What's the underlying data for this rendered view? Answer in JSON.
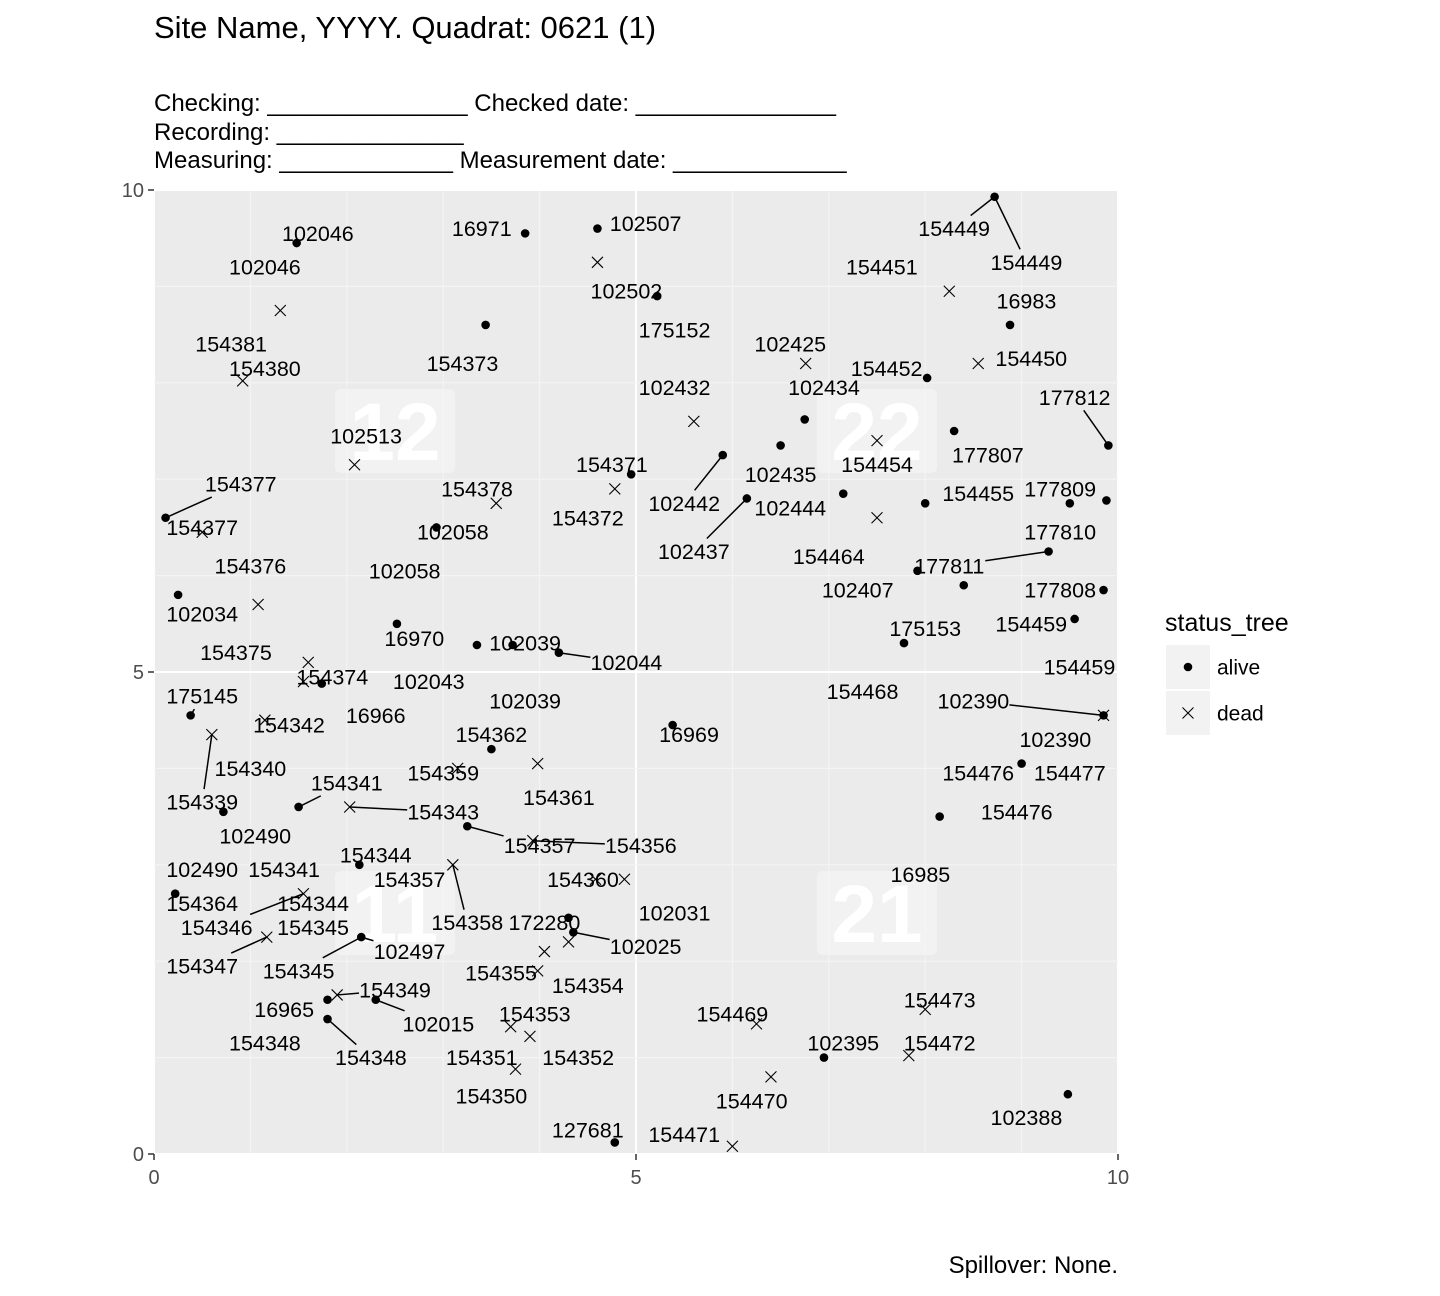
{
  "title": "Site Name, YYYY. Quadrat: 0621 (1)",
  "subtitle_lines": [
    "Checking: _______________ Checked date: _______________",
    "Recording: ______________",
    "Measuring: _____________ Measurement date: _____________"
  ],
  "caption": "Spillover: None.",
  "colors": {
    "panel": "#ebebeb",
    "grid_major": "#ffffff",
    "grid_minor": "#f4f4f4",
    "point": "#000000",
    "quadrat_box": "#f4f4f4"
  },
  "chart_data": {
    "type": "scatter",
    "xlim": [
      0,
      10
    ],
    "ylim": [
      0,
      10
    ],
    "x_ticks": [
      "0",
      "5",
      "10"
    ],
    "y_ticks": [
      "0",
      "5",
      "10"
    ],
    "grid": true,
    "legend": {
      "title": "status_tree",
      "position": "right",
      "entries": [
        {
          "label": "alive",
          "shape": "circle"
        },
        {
          "label": "dead",
          "shape": "cross"
        }
      ]
    },
    "quadrat_labels": [
      {
        "text": "12",
        "x": 2.5,
        "y": 7.5
      },
      {
        "text": "22",
        "x": 7.5,
        "y": 7.5
      },
      {
        "text": "11",
        "x": 2.5,
        "y": 2.5
      },
      {
        "text": "21",
        "x": 7.5,
        "y": 2.5
      }
    ],
    "points": [
      {
        "x": 8.72,
        "y": 9.93,
        "s": "alive"
      },
      {
        "x": 3.85,
        "y": 9.55,
        "s": "alive"
      },
      {
        "x": 4.6,
        "y": 9.6,
        "s": "alive"
      },
      {
        "x": 4.6,
        "y": 9.25,
        "s": "dead"
      },
      {
        "x": 1.48,
        "y": 9.45,
        "s": "alive"
      },
      {
        "x": 8.25,
        "y": 8.95,
        "s": "dead"
      },
      {
        "x": 5.22,
        "y": 8.9,
        "s": "alive"
      },
      {
        "x": 8.88,
        "y": 8.6,
        "s": "alive"
      },
      {
        "x": 1.31,
        "y": 8.75,
        "s": "dead"
      },
      {
        "x": 3.44,
        "y": 8.6,
        "s": "alive"
      },
      {
        "x": 6.76,
        "y": 8.2,
        "s": "dead"
      },
      {
        "x": 8.55,
        "y": 8.2,
        "s": "dead"
      },
      {
        "x": 8.02,
        "y": 8.05,
        "s": "alive"
      },
      {
        "x": 0.92,
        "y": 8.02,
        "s": "dead"
      },
      {
        "x": 5.6,
        "y": 7.6,
        "s": "dead"
      },
      {
        "x": 6.75,
        "y": 7.62,
        "s": "alive"
      },
      {
        "x": 8.3,
        "y": 7.5,
        "s": "alive"
      },
      {
        "x": 7.5,
        "y": 7.4,
        "s": "dead"
      },
      {
        "x": 6.5,
        "y": 7.35,
        "s": "alive"
      },
      {
        "x": 9.9,
        "y": 7.35,
        "s": "alive"
      },
      {
        "x": 5.9,
        "y": 7.25,
        "s": "alive"
      },
      {
        "x": 2.08,
        "y": 7.15,
        "s": "dead"
      },
      {
        "x": 4.95,
        "y": 7.05,
        "s": "alive"
      },
      {
        "x": 4.78,
        "y": 6.9,
        "s": "dead"
      },
      {
        "x": 7.15,
        "y": 6.85,
        "s": "alive"
      },
      {
        "x": 3.55,
        "y": 6.75,
        "s": "dead"
      },
      {
        "x": 6.15,
        "y": 6.8,
        "s": "alive"
      },
      {
        "x": 8.0,
        "y": 6.75,
        "s": "alive"
      },
      {
        "x": 9.5,
        "y": 6.75,
        "s": "alive"
      },
      {
        "x": 9.88,
        "y": 6.78,
        "s": "alive"
      },
      {
        "x": 0.12,
        "y": 6.6,
        "s": "alive"
      },
      {
        "x": 7.5,
        "y": 6.6,
        "s": "dead"
      },
      {
        "x": 2.93,
        "y": 6.5,
        "s": "alive"
      },
      {
        "x": 0.5,
        "y": 6.45,
        "s": "dead"
      },
      {
        "x": 9.28,
        "y": 6.25,
        "s": "alive"
      },
      {
        "x": 7.92,
        "y": 6.05,
        "s": "alive"
      },
      {
        "x": 8.4,
        "y": 5.9,
        "s": "alive"
      },
      {
        "x": 9.85,
        "y": 5.85,
        "s": "alive"
      },
      {
        "x": 0.25,
        "y": 5.8,
        "s": "alive"
      },
      {
        "x": 1.08,
        "y": 5.7,
        "s": "dead"
      },
      {
        "x": 9.55,
        "y": 5.55,
        "s": "alive"
      },
      {
        "x": 2.52,
        "y": 5.5,
        "s": "alive"
      },
      {
        "x": 7.78,
        "y": 5.3,
        "s": "alive"
      },
      {
        "x": 3.35,
        "y": 5.28,
        "s": "alive"
      },
      {
        "x": 3.72,
        "y": 5.28,
        "s": "alive"
      },
      {
        "x": 4.2,
        "y": 5.2,
        "s": "alive"
      },
      {
        "x": 1.6,
        "y": 5.1,
        "s": "dead"
      },
      {
        "x": 1.55,
        "y": 4.9,
        "s": "dead"
      },
      {
        "x": 1.74,
        "y": 4.88,
        "s": "alive"
      },
      {
        "x": 0.38,
        "y": 4.55,
        "s": "alive"
      },
      {
        "x": 1.15,
        "y": 4.5,
        "s": "dead"
      },
      {
        "x": 9.85,
        "y": 4.55,
        "s": "dead"
      },
      {
        "x": 9.85,
        "y": 4.55,
        "s": "alive"
      },
      {
        "x": 0.6,
        "y": 4.35,
        "s": "dead"
      },
      {
        "x": 5.38,
        "y": 4.45,
        "s": "alive"
      },
      {
        "x": 3.5,
        "y": 4.2,
        "s": "alive"
      },
      {
        "x": 3.98,
        "y": 4.05,
        "s": "dead"
      },
      {
        "x": 3.15,
        "y": 4.0,
        "s": "dead"
      },
      {
        "x": 9.0,
        "y": 4.05,
        "s": "alive"
      },
      {
        "x": 2.03,
        "y": 3.6,
        "s": "dead"
      },
      {
        "x": 1.5,
        "y": 3.6,
        "s": "alive"
      },
      {
        "x": 0.72,
        "y": 3.55,
        "s": "alive"
      },
      {
        "x": 8.15,
        "y": 3.5,
        "s": "alive"
      },
      {
        "x": 3.25,
        "y": 3.4,
        "s": "alive"
      },
      {
        "x": 3.93,
        "y": 3.25,
        "s": "dead"
      },
      {
        "x": 3.1,
        "y": 3.0,
        "s": "dead"
      },
      {
        "x": 2.13,
        "y": 3.0,
        "s": "alive"
      },
      {
        "x": 4.58,
        "y": 2.85,
        "s": "dead"
      },
      {
        "x": 4.88,
        "y": 2.85,
        "s": "dead"
      },
      {
        "x": 0.22,
        "y": 2.7,
        "s": "alive"
      },
      {
        "x": 1.55,
        "y": 2.7,
        "s": "dead"
      },
      {
        "x": 4.3,
        "y": 2.45,
        "s": "alive"
      },
      {
        "x": 4.35,
        "y": 2.3,
        "s": "alive"
      },
      {
        "x": 4.3,
        "y": 2.2,
        "s": "dead"
      },
      {
        "x": 2.15,
        "y": 2.25,
        "s": "alive"
      },
      {
        "x": 1.17,
        "y": 2.25,
        "s": "dead"
      },
      {
        "x": 4.05,
        "y": 2.1,
        "s": "dead"
      },
      {
        "x": 3.98,
        "y": 1.9,
        "s": "dead"
      },
      {
        "x": 1.9,
        "y": 1.65,
        "s": "dead"
      },
      {
        "x": 1.8,
        "y": 1.6,
        "s": "alive"
      },
      {
        "x": 2.3,
        "y": 1.6,
        "s": "alive"
      },
      {
        "x": 8.0,
        "y": 1.5,
        "s": "dead"
      },
      {
        "x": 6.25,
        "y": 1.35,
        "s": "dead"
      },
      {
        "x": 1.8,
        "y": 1.4,
        "s": "alive"
      },
      {
        "x": 3.7,
        "y": 1.32,
        "s": "dead"
      },
      {
        "x": 3.9,
        "y": 1.22,
        "s": "dead"
      },
      {
        "x": 6.95,
        "y": 1.0,
        "s": "alive"
      },
      {
        "x": 7.83,
        "y": 1.02,
        "s": "dead"
      },
      {
        "x": 3.75,
        "y": 0.88,
        "s": "dead"
      },
      {
        "x": 6.4,
        "y": 0.8,
        "s": "dead"
      },
      {
        "x": 9.48,
        "y": 0.62,
        "s": "alive"
      },
      {
        "x": 4.78,
        "y": 0.12,
        "s": "alive"
      },
      {
        "x": 6.0,
        "y": 0.08,
        "s": "dead"
      }
    ],
    "labels": [
      {
        "t": "154449",
        "x": 8.3,
        "y": 9.6,
        "lx": 8.72,
        "ly": 9.93
      },
      {
        "t": "154449",
        "x": 9.05,
        "y": 9.25,
        "lx": 8.72,
        "ly": 9.93
      },
      {
        "t": "16971",
        "x": 3.4,
        "y": 9.6
      },
      {
        "t": "102507",
        "x": 5.1,
        "y": 9.65
      },
      {
        "t": "102046",
        "x": 1.7,
        "y": 9.55
      },
      {
        "t": "102046",
        "x": 1.15,
        "y": 9.2
      },
      {
        "t": "102502",
        "x": 4.9,
        "y": 8.95
      },
      {
        "t": "154451",
        "x": 7.55,
        "y": 9.2
      },
      {
        "t": "175152",
        "x": 5.4,
        "y": 8.55
      },
      {
        "t": "16983",
        "x": 9.05,
        "y": 8.85
      },
      {
        "t": "154381",
        "x": 0.8,
        "y": 8.4
      },
      {
        "t": "154373",
        "x": 3.2,
        "y": 8.2
      },
      {
        "t": "102425",
        "x": 6.6,
        "y": 8.4
      },
      {
        "t": "154452",
        "x": 7.6,
        "y": 8.15
      },
      {
        "t": "154450",
        "x": 9.1,
        "y": 8.25
      },
      {
        "t": "154380",
        "x": 1.15,
        "y": 8.15
      },
      {
        "t": "102432",
        "x": 5.4,
        "y": 7.95
      },
      {
        "t": "102434",
        "x": 6.95,
        "y": 7.95
      },
      {
        "t": "177812",
        "x": 9.55,
        "y": 7.85,
        "lx": 9.9,
        "ly": 7.35
      },
      {
        "t": "102513",
        "x": 2.2,
        "y": 7.45
      },
      {
        "t": "177807",
        "x": 8.65,
        "y": 7.25
      },
      {
        "t": "154371",
        "x": 4.75,
        "y": 7.15
      },
      {
        "t": "102435",
        "x": 6.5,
        "y": 7.05
      },
      {
        "t": "154454",
        "x": 7.5,
        "y": 7.15
      },
      {
        "t": "154377",
        "x": 0.9,
        "y": 6.95,
        "lx": 0.12,
        "ly": 6.6
      },
      {
        "t": "154378",
        "x": 3.35,
        "y": 6.9
      },
      {
        "t": "102442",
        "x": 5.5,
        "y": 6.75,
        "lx": 5.9,
        "ly": 7.25
      },
      {
        "t": "154455",
        "x": 8.55,
        "y": 6.85
      },
      {
        "t": "177809",
        "x": 9.4,
        "y": 6.9
      },
      {
        "t": "154372",
        "x": 4.5,
        "y": 6.6
      },
      {
        "t": "102444",
        "x": 6.6,
        "y": 6.7
      },
      {
        "t": "154377",
        "x": 0.5,
        "y": 6.5
      },
      {
        "t": "102058",
        "x": 3.1,
        "y": 6.45
      },
      {
        "t": "177810",
        "x": 9.4,
        "y": 6.45
      },
      {
        "t": "102437",
        "x": 5.6,
        "y": 6.25,
        "lx": 6.15,
        "ly": 6.8
      },
      {
        "t": "154376",
        "x": 1.0,
        "y": 6.1
      },
      {
        "t": "154464",
        "x": 7.0,
        "y": 6.2
      },
      {
        "t": "102058",
        "x": 2.6,
        "y": 6.05
      },
      {
        "t": "177811",
        "x": 8.25,
        "y": 6.1,
        "lx": 9.28,
        "ly": 6.25
      },
      {
        "t": "102407",
        "x": 7.3,
        "y": 5.85
      },
      {
        "t": "177808",
        "x": 9.4,
        "y": 5.85
      },
      {
        "t": "102034",
        "x": 0.5,
        "y": 5.6
      },
      {
        "t": "175153",
        "x": 8.0,
        "y": 5.45
      },
      {
        "t": "154459",
        "x": 9.1,
        "y": 5.5
      },
      {
        "t": "16970",
        "x": 2.7,
        "y": 5.35
      },
      {
        "t": "102039",
        "x": 3.85,
        "y": 5.3,
        "lx": 3.72,
        "ly": 5.28
      },
      {
        "t": "102044",
        "x": 4.9,
        "y": 5.1,
        "lx": 4.2,
        "ly": 5.2
      },
      {
        "t": "154375",
        "x": 0.85,
        "y": 5.2
      },
      {
        "t": "154459",
        "x": 9.6,
        "y": 5.05
      },
      {
        "t": "154374",
        "x": 1.85,
        "y": 4.95
      },
      {
        "t": "102043",
        "x": 2.85,
        "y": 4.9
      },
      {
        "t": "175145",
        "x": 0.5,
        "y": 4.75,
        "lx": 0.38,
        "ly": 4.55
      },
      {
        "t": "102039",
        "x": 3.85,
        "y": 4.7
      },
      {
        "t": "154468",
        "x": 7.35,
        "y": 4.8
      },
      {
        "t": "102390",
        "x": 8.5,
        "y": 4.7,
        "lx": 9.85,
        "ly": 4.55
      },
      {
        "t": "16966",
        "x": 2.3,
        "y": 4.55
      },
      {
        "t": "154342",
        "x": 1.4,
        "y": 4.45
      },
      {
        "t": "16969",
        "x": 5.55,
        "y": 4.35
      },
      {
        "t": "102390",
        "x": 9.35,
        "y": 4.3
      },
      {
        "t": "154362",
        "x": 3.5,
        "y": 4.35
      },
      {
        "t": "154340",
        "x": 1.0,
        "y": 4.0
      },
      {
        "t": "154359",
        "x": 3.0,
        "y": 3.95
      },
      {
        "t": "154476",
        "x": 8.55,
        "y": 3.95
      },
      {
        "t": "154477",
        "x": 9.5,
        "y": 3.95
      },
      {
        "t": "154339",
        "x": 0.5,
        "y": 3.65,
        "lx": 0.6,
        "ly": 4.35
      },
      {
        "t": "154361",
        "x": 4.2,
        "y": 3.7
      },
      {
        "t": "154341",
        "x": 2.0,
        "y": 3.85,
        "lx": 1.5,
        "ly": 3.6
      },
      {
        "t": "154343",
        "x": 3.0,
        "y": 3.55,
        "lx": 2.03,
        "ly": 3.6
      },
      {
        "t": "154476",
        "x": 8.95,
        "y": 3.55
      },
      {
        "t": "102490",
        "x": 1.05,
        "y": 3.3
      },
      {
        "t": "154344",
        "x": 2.3,
        "y": 3.1
      },
      {
        "t": "154357",
        "x": 4.0,
        "y": 3.2,
        "lx": 3.25,
        "ly": 3.4
      },
      {
        "t": "154356",
        "x": 5.05,
        "y": 3.2,
        "lx": 3.93,
        "ly": 3.25
      },
      {
        "t": "102490",
        "x": 0.5,
        "y": 2.95
      },
      {
        "t": "154341",
        "x": 1.35,
        "y": 2.95
      },
      {
        "t": "16985",
        "x": 7.95,
        "y": 2.9
      },
      {
        "t": "154357",
        "x": 2.65,
        "y": 2.85
      },
      {
        "t": "154360",
        "x": 4.45,
        "y": 2.85
      },
      {
        "t": "154364",
        "x": 0.5,
        "y": 2.6
      },
      {
        "t": "154344",
        "x": 1.65,
        "y": 2.6,
        "lx": 1.55,
        "ly": 2.7
      },
      {
        "t": "102031",
        "x": 5.4,
        "y": 2.5
      },
      {
        "t": "154358",
        "x": 3.25,
        "y": 2.4,
        "lx": 3.1,
        "ly": 3.0
      },
      {
        "t": "172280",
        "x": 4.05,
        "y": 2.4
      },
      {
        "t": "154346",
        "x": 0.65,
        "y": 2.35,
        "lx": 1.55,
        "ly": 2.7
      },
      {
        "t": "154345",
        "x": 1.65,
        "y": 2.35
      },
      {
        "t": "102497",
        "x": 2.65,
        "y": 2.1,
        "lx": 2.15,
        "ly": 2.25
      },
      {
        "t": "102025",
        "x": 5.1,
        "y": 2.15,
        "lx": 4.35,
        "ly": 2.3
      },
      {
        "t": "154347",
        "x": 0.5,
        "y": 1.95,
        "lx": 1.17,
        "ly": 2.25
      },
      {
        "t": "154345",
        "x": 1.5,
        "y": 1.9,
        "lx": 2.15,
        "ly": 2.25
      },
      {
        "t": "154355",
        "x": 3.6,
        "y": 1.88
      },
      {
        "t": "154354",
        "x": 4.5,
        "y": 1.75
      },
      {
        "t": "154349",
        "x": 2.5,
        "y": 1.7,
        "lx": 1.9,
        "ly": 1.65
      },
      {
        "t": "16965",
        "x": 1.35,
        "y": 1.5
      },
      {
        "t": "154353",
        "x": 3.95,
        "y": 1.45
      },
      {
        "t": "102015",
        "x": 2.95,
        "y": 1.35,
        "lx": 2.3,
        "ly": 1.6
      },
      {
        "t": "154469",
        "x": 6.0,
        "y": 1.45
      },
      {
        "t": "154473",
        "x": 8.15,
        "y": 1.6
      },
      {
        "t": "154348",
        "x": 1.15,
        "y": 1.15
      },
      {
        "t": "154348",
        "x": 2.25,
        "y": 1.0,
        "lx": 1.8,
        "ly": 1.4
      },
      {
        "t": "154351",
        "x": 3.4,
        "y": 1.0
      },
      {
        "t": "154352",
        "x": 4.4,
        "y": 1.0
      },
      {
        "t": "102395",
        "x": 7.15,
        "y": 1.15
      },
      {
        "t": "154472",
        "x": 8.15,
        "y": 1.15
      },
      {
        "t": "154350",
        "x": 3.5,
        "y": 0.6
      },
      {
        "t": "154470",
        "x": 6.2,
        "y": 0.55
      },
      {
        "t": "102388",
        "x": 9.05,
        "y": 0.38
      },
      {
        "t": "127681",
        "x": 4.5,
        "y": 0.25
      },
      {
        "t": "154471",
        "x": 5.5,
        "y": 0.2
      }
    ]
  }
}
